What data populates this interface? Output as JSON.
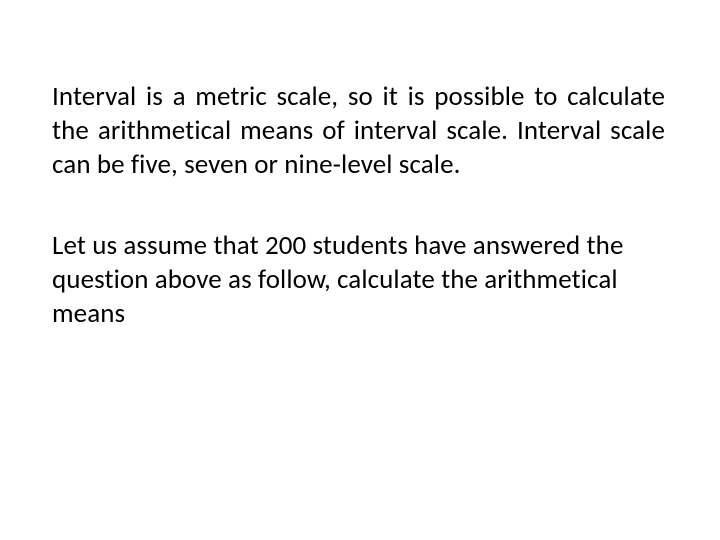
{
  "slide": {
    "background_color": "#ffffff",
    "text_color": "#000000",
    "font_family": "Calibri",
    "paragraphs": [
      {
        "text": "Interval is a metric scale, so it is possible to calculate the arithmetical means of interval scale. Interval scale can be five, seven or nine-level scale.",
        "font_size_pt": 20,
        "align": "justify",
        "line_height": 1.25
      },
      {
        "text": "Let us assume that 200 students have answered the question above as follow, calculate the arithmetical means",
        "font_size_pt": 20,
        "align": "left",
        "line_height": 1.25
      }
    ]
  }
}
